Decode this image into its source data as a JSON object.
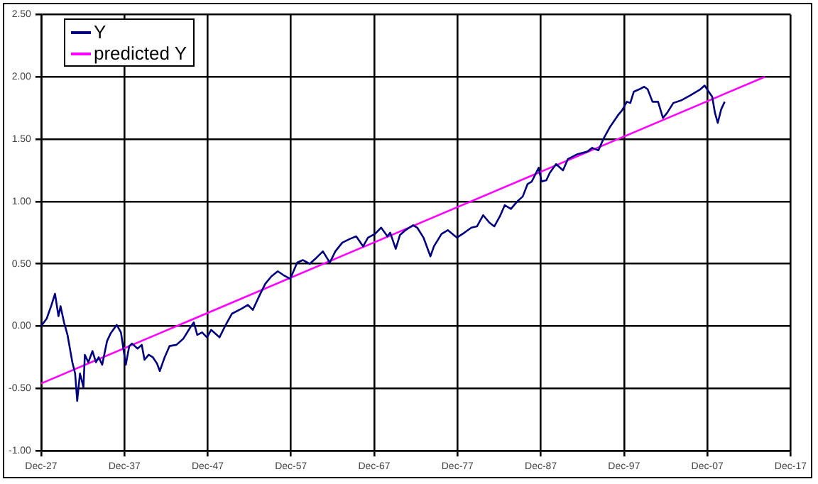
{
  "chart_data": {
    "type": "line",
    "x": [
      "1927-12",
      "1928-08",
      "1929-03",
      "1929-08",
      "1930-01",
      "1930-04",
      "1930-09",
      "1931-02",
      "1931-09",
      "1932-01",
      "1932-04",
      "1932-08",
      "1933-01",
      "1933-03",
      "1933-08",
      "1934-02",
      "1934-07",
      "1934-11",
      "1935-04",
      "1935-11",
      "1936-04",
      "1937-01",
      "1937-07",
      "1938-02",
      "1938-07",
      "1938-11",
      "1939-07",
      "1940-01",
      "1940-05",
      "1940-11",
      "1941-05",
      "1941-11",
      "1942-03",
      "1942-10",
      "1943-05",
      "1944-03",
      "1945-01",
      "1945-11",
      "1946-04",
      "1946-09",
      "1947-04",
      "1947-11",
      "1948-05",
      "1949-01",
      "1949-05",
      "1950-02",
      "1950-11",
      "1952-01",
      "1952-10",
      "1953-05",
      "1954-03",
      "1954-11",
      "1955-08",
      "1956-05",
      "1957-01",
      "1957-11",
      "1958-09",
      "1959-05",
      "1960-03",
      "1961-01",
      "1961-10",
      "1962-08",
      "1963-04",
      "1964-02",
      "1965-01",
      "1965-10",
      "1966-08",
      "1967-03",
      "1968-01",
      "1968-10",
      "1969-07",
      "1969-11",
      "1970-07",
      "1971-01",
      "1971-09",
      "1972-08",
      "1973-02",
      "1973-11",
      "1974-09",
      "1975-02",
      "1976-01",
      "1976-10",
      "1977-11",
      "1978-10",
      "1979-08",
      "1980-04",
      "1981-01",
      "1981-10",
      "1982-05",
      "1983-01",
      "1983-08",
      "1984-05",
      "1985-02",
      "1985-10",
      "1986-05",
      "1986-11",
      "1987-09",
      "1988-01",
      "1988-08",
      "1989-01",
      "1989-10",
      "1990-08",
      "1991-03",
      "1992-05",
      "1993-07",
      "1994-02",
      "1994-11",
      "1995-07",
      "1996-04",
      "1997-03",
      "1997-09",
      "1998-04",
      "1998-09",
      "1999-02",
      "1999-10",
      "2000-05",
      "2000-10",
      "2001-05",
      "2002-01",
      "2002-08",
      "2003-02",
      "2003-11",
      "2004-10",
      "2005-11",
      "2007-02",
      "2007-08",
      "2008-02",
      "2008-07",
      "2008-11",
      "2009-03",
      "2009-08",
      "2010-01"
    ],
    "series": [
      {
        "name": "Y",
        "color": "#000080",
        "values": [
          0.0,
          0.06,
          0.17,
          0.26,
          0.08,
          0.16,
          0.03,
          -0.07,
          -0.29,
          -0.38,
          -0.6,
          -0.38,
          -0.49,
          -0.23,
          -0.29,
          -0.2,
          -0.29,
          -0.25,
          -0.31,
          -0.12,
          -0.06,
          0.01,
          -0.05,
          -0.31,
          -0.16,
          -0.14,
          -0.18,
          -0.15,
          -0.27,
          -0.23,
          -0.25,
          -0.3,
          -0.36,
          -0.25,
          -0.16,
          -0.15,
          -0.1,
          -0.01,
          0.03,
          -0.07,
          -0.05,
          -0.09,
          -0.03,
          -0.07,
          -0.09,
          0.01,
          0.1,
          0.14,
          0.17,
          0.13,
          0.25,
          0.34,
          0.4,
          0.44,
          0.41,
          0.38,
          0.51,
          0.53,
          0.5,
          0.55,
          0.6,
          0.51,
          0.6,
          0.67,
          0.7,
          0.72,
          0.64,
          0.71,
          0.74,
          0.79,
          0.72,
          0.75,
          0.62,
          0.73,
          0.77,
          0.81,
          0.79,
          0.71,
          0.56,
          0.64,
          0.74,
          0.77,
          0.71,
          0.75,
          0.79,
          0.8,
          0.89,
          0.83,
          0.8,
          0.88,
          0.97,
          0.94,
          1.0,
          1.04,
          1.14,
          1.16,
          1.27,
          1.16,
          1.17,
          1.23,
          1.3,
          1.25,
          1.34,
          1.38,
          1.4,
          1.43,
          1.41,
          1.51,
          1.6,
          1.69,
          1.73,
          1.8,
          1.79,
          1.88,
          1.9,
          1.92,
          1.9,
          1.8,
          1.8,
          1.67,
          1.71,
          1.79,
          1.81,
          1.85,
          1.9,
          1.93,
          1.88,
          1.84,
          1.71,
          1.63,
          1.74,
          1.8
        ]
      },
      {
        "name": "predicted Y",
        "color": "#ff00ff",
        "x": [
          "1927-12",
          "2014-11"
        ],
        "values": [
          -0.46,
          2.0
        ]
      }
    ],
    "xlim": [
      "1927-12",
      "2017-12"
    ],
    "xticks": [
      {
        "value": "1927-12",
        "label": "Dec-27"
      },
      {
        "value": "1937-12",
        "label": "Dec-37"
      },
      {
        "value": "1947-12",
        "label": "Dec-47"
      },
      {
        "value": "1957-12",
        "label": "Dec-57"
      },
      {
        "value": "1967-12",
        "label": "Dec-67"
      },
      {
        "value": "1977-12",
        "label": "Dec-77"
      },
      {
        "value": "1987-12",
        "label": "Dec-87"
      },
      {
        "value": "1997-12",
        "label": "Dec-97"
      },
      {
        "value": "2007-12",
        "label": "Dec-07"
      },
      {
        "value": "2017-12",
        "label": "Dec-17"
      }
    ],
    "ylim": [
      -1,
      2.5
    ],
    "yticks": [
      {
        "value": -1,
        "label": "-1.00"
      },
      {
        "value": -0.5,
        "label": "-0.50"
      },
      {
        "value": 0,
        "label": "0.00"
      },
      {
        "value": 0.5,
        "label": "0.50"
      },
      {
        "value": 1,
        "label": "1.00"
      },
      {
        "value": 1.5,
        "label": "1.50"
      },
      {
        "value": 2,
        "label": "2.00"
      },
      {
        "value": 2.5,
        "label": "2.50"
      }
    ],
    "grid": true,
    "legend": "top left",
    "marker": "none",
    "line_style": "solid"
  }
}
